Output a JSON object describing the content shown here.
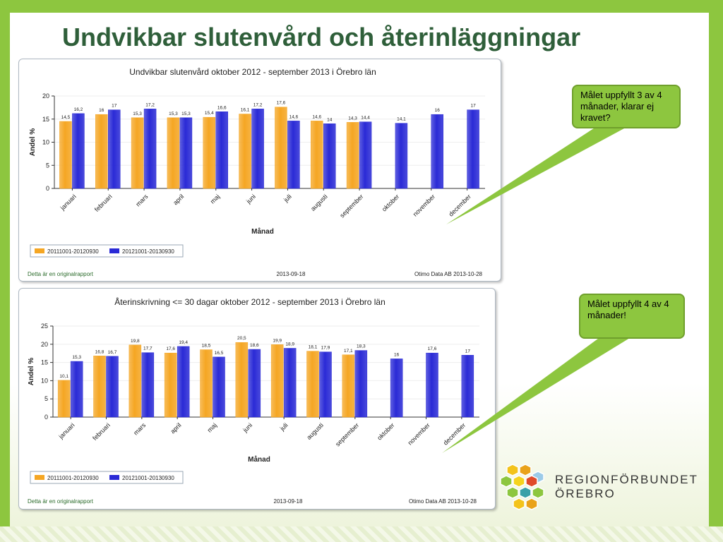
{
  "slide": {
    "title": "Undvikbar slutenvård och återinläggningar",
    "callouts": [
      "Målet uppfyllt 3 av 4 månader, klarar ej kravet?",
      "Målet uppfyllt 4 av 4 månader!"
    ],
    "logo": {
      "line1": "REGIONFÖRBUNDET",
      "line2": "ÖREBRO"
    }
  },
  "chart_data": [
    {
      "type": "bar",
      "title": "Undvikbar slutenvård oktober 2012 - september 2013 i Örebro län",
      "xlabel": "Månad",
      "ylabel": "Andel %",
      "ylim": [
        0,
        20
      ],
      "yticks": [
        0,
        5,
        10,
        15,
        20
      ],
      "categories": [
        "januari",
        "februari",
        "mars",
        "april",
        "maj",
        "juni",
        "juli",
        "augusti",
        "september",
        "oktober",
        "november",
        "december"
      ],
      "value_labels": {
        "series0": [
          "14,5",
          "16",
          "15,3",
          "15,3",
          "15,4",
          "16,1",
          "17,6",
          "14,6",
          "14,3",
          null,
          null,
          null
        ],
        "series1": [
          "16,2",
          "17",
          "17,2",
          "15,3",
          "16,6",
          "17,2",
          "14,6",
          "14",
          "14,4",
          "14,1",
          "16",
          "17"
        ]
      },
      "series": [
        {
          "name": "20111001-20120930",
          "color": "#f5a623",
          "values": [
            14.5,
            16,
            15.3,
            15.3,
            15.4,
            16.1,
            17.6,
            14.6,
            14.3,
            null,
            null,
            null
          ]
        },
        {
          "name": "20121001-20130930",
          "color": "#2a2ad6",
          "values": [
            16.2,
            17,
            17.2,
            15.3,
            16.6,
            17.2,
            14.6,
            14,
            14.4,
            14.1,
            16,
            17
          ]
        }
      ],
      "grid": true,
      "legend": "bottom-left",
      "footer": {
        "left": "Detta är en originalrapport",
        "center": "2013-09-18",
        "right": "Otimo Data AB 2013-10-28"
      }
    },
    {
      "type": "bar",
      "title": "Återinskrivning <= 30 dagar oktober 2012 - september 2013 i Örebro län",
      "xlabel": "Månad",
      "ylabel": "Andel %",
      "ylim": [
        0,
        25
      ],
      "yticks": [
        0,
        5,
        10,
        15,
        20,
        25
      ],
      "categories": [
        "januari",
        "februari",
        "mars",
        "april",
        "maj",
        "juni",
        "juli",
        "augusti",
        "september",
        "oktober",
        "november",
        "december"
      ],
      "value_labels": {
        "series0": [
          "10,1",
          "16,8",
          "19,8",
          "17,6",
          "18,5",
          "20,5",
          "19,9",
          "18,1",
          "17,1",
          null,
          null,
          null
        ],
        "series1": [
          "15,3",
          "16,7",
          "17,7",
          "19,4",
          "16,5",
          "18,6",
          "18,9",
          "17,9",
          "18,3",
          "16",
          "17,6",
          "17"
        ]
      },
      "series": [
        {
          "name": "20111001-20120930",
          "color": "#f5a623",
          "values": [
            10.1,
            16.8,
            19.8,
            17.6,
            18.5,
            20.5,
            19.9,
            18.1,
            17.1,
            null,
            null,
            null
          ]
        },
        {
          "name": "20121001-20130930",
          "color": "#2a2ad6",
          "values": [
            15.3,
            16.7,
            17.7,
            19.4,
            16.5,
            18.6,
            18.9,
            17.9,
            18.3,
            16,
            17.6,
            17
          ]
        }
      ],
      "grid": true,
      "legend": "bottom-left",
      "footer": {
        "left": "Detta är en originalrapport",
        "center": "2013-09-18",
        "right": "Otimo Data AB 2013-10-28"
      }
    }
  ]
}
